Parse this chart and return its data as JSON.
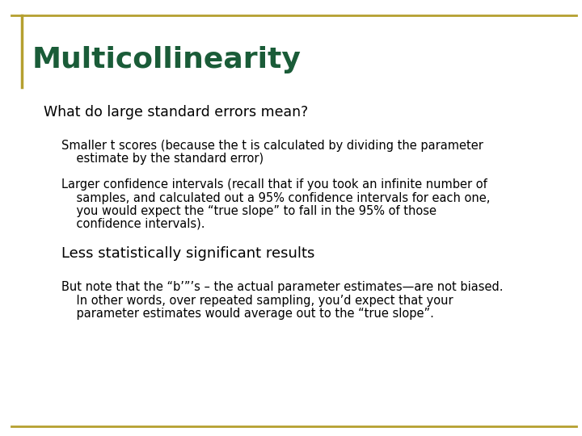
{
  "title": "Multicollinearity",
  "title_color": "#1a5c38",
  "title_fontsize": 26,
  "background_color": "#ffffff",
  "border_color": "#b5a030",
  "body_color": "#000000",
  "heading": "What do large standard errors mean?",
  "heading_fontsize": 12.5,
  "bullet1_line1": "Smaller t scores (because the t is calculated by dividing the parameter",
  "bullet1_line2": "    estimate by the standard error)",
  "bullet2_line1": "Larger confidence intervals (recall that if you took an infinite number of",
  "bullet2_line2": "    samples, and calculated out a 95% confidence intervals for each one,",
  "bullet2_line3": "    you would expect the “true slope” to fall in the 95% of those",
  "bullet2_line4": "    confidence intervals).",
  "bullet3": "Less statistically significant results",
  "bullet4_line1": "But note that the “b’”’s – the actual parameter estimates—are not biased.",
  "bullet4_line2": "    In other words, over repeated sampling, you’d expect that your",
  "bullet4_line3": "    parameter estimates would average out to the “true slope”.",
  "body_fontsize": 10.5,
  "bullet3_fontsize": 13.0
}
